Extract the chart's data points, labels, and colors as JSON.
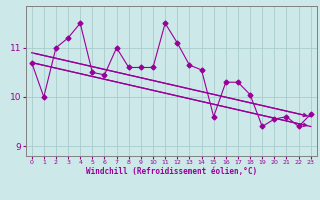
{
  "x_data": [
    0,
    1,
    2,
    3,
    4,
    5,
    6,
    7,
    8,
    9,
    10,
    11,
    12,
    13,
    14,
    15,
    16,
    17,
    18,
    19,
    20,
    21,
    22,
    23
  ],
  "y_data": [
    10.7,
    10.0,
    11.0,
    11.2,
    11.5,
    10.5,
    10.45,
    11.0,
    10.6,
    10.6,
    10.6,
    11.5,
    11.1,
    10.65,
    10.55,
    9.6,
    10.3,
    10.3,
    10.05,
    9.4,
    9.55,
    9.6,
    9.4,
    9.65
  ],
  "bg_color": "#cce8e8",
  "line_color": "#990099",
  "grid_color": "#aacccc",
  "xlabel": "Windchill (Refroidissement éolien,°C)",
  "ylim": [
    8.8,
    11.85
  ],
  "xlim": [
    -0.5,
    23.5
  ],
  "yticks": [
    9,
    10,
    11
  ],
  "xticks": [
    0,
    1,
    2,
    3,
    4,
    5,
    6,
    7,
    8,
    9,
    10,
    11,
    12,
    13,
    14,
    15,
    16,
    17,
    18,
    19,
    20,
    21,
    22,
    23
  ],
  "trend1_x": [
    0,
    23
  ],
  "trend1_y": [
    10.9,
    9.6
  ],
  "trend2_x": [
    0,
    23
  ],
  "trend2_y": [
    10.7,
    9.4
  ]
}
